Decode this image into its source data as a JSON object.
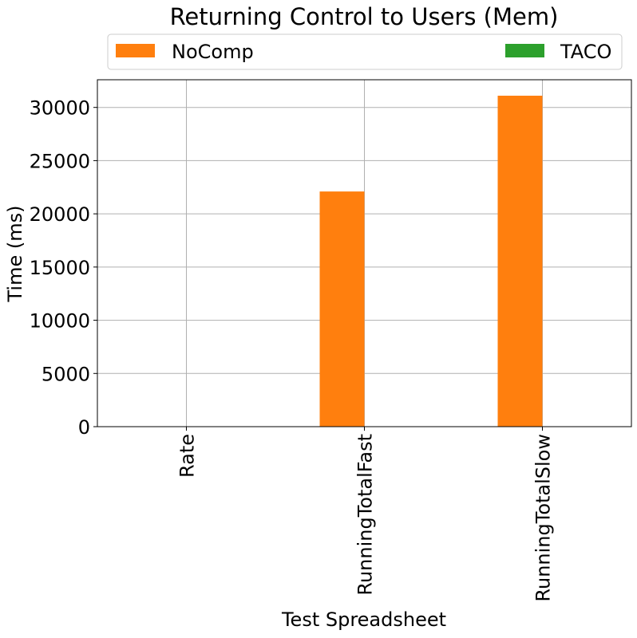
{
  "chart_data": {
    "type": "bar",
    "title": "Returning Control to Users (Mem)",
    "xlabel": "Test Spreadsheet",
    "ylabel": "Time (ms)",
    "categories": [
      "Rate",
      "RunningTotalFast",
      "RunningTotalSlow"
    ],
    "series": [
      {
        "name": "NoComp",
        "color": "#ff7f0e",
        "values": [
          0,
          22100,
          31100
        ]
      },
      {
        "name": "TACO",
        "color": "#2ca02c",
        "values": [
          0,
          0,
          0
        ]
      }
    ],
    "ylim": [
      0,
      32600
    ],
    "yticks": [
      0,
      5000,
      10000,
      15000,
      20000,
      25000,
      30000
    ],
    "ytick_labels": [
      "0",
      "5000",
      "10000",
      "15000",
      "20000",
      "25000",
      "30000"
    ],
    "grid": true,
    "legend_position": "top, above plot, horizontal"
  }
}
